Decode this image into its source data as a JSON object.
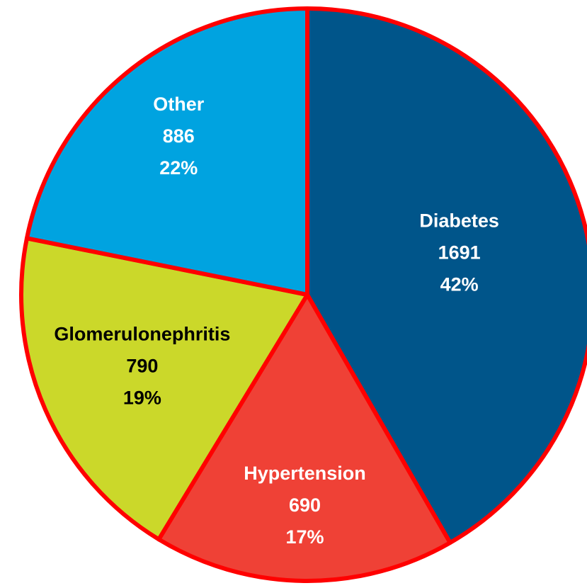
{
  "chart_data": {
    "type": "pie",
    "categories": [
      "Diabetes",
      "Hypertension",
      "Glomerulonephritis",
      "Other"
    ],
    "values": [
      1691,
      690,
      790,
      886
    ],
    "percent_labels": [
      "42%",
      "17%",
      "19%",
      "22%"
    ],
    "colors": [
      "#00558a",
      "#ef4136",
      "#cbd82a",
      "#00a3e0"
    ],
    "label_colors": [
      "#ffffff",
      "#ffffff",
      "#000000",
      "#ffffff"
    ],
    "edge_color": "#ff0000"
  }
}
